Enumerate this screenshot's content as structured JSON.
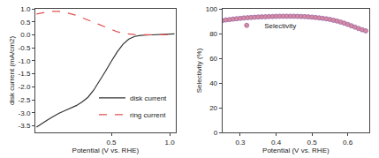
{
  "chart_data": [
    {
      "type": "line",
      "x_label": "Potential (V vs. RHE)",
      "y_label": "disk current (mA/cm2)",
      "xlim": [
        -0.15,
        1.05
      ],
      "ylim": [
        -3.75,
        1.0
      ],
      "xticks": [
        0.5,
        {
          "value": 1,
          "label": "1.0"
        }
      ],
      "yticks": [
        -3.5,
        {
          "value": -3,
          "label": "-3.0"
        },
        -2.5,
        {
          "value": -2,
          "label": "-2.0"
        },
        -1.5,
        {
          "value": -1,
          "label": "-1.0"
        },
        -0.5,
        {
          "value": 0,
          "label": "0.0"
        },
        0.5,
        {
          "value": 1,
          "label": "1.0"
        }
      ],
      "grid": false,
      "legend": "lower right",
      "x": [
        -0.14,
        -0.1,
        -0.05,
        0.0,
        0.05,
        0.1,
        0.15,
        0.2,
        0.25,
        0.3,
        0.35,
        0.4,
        0.45,
        0.5,
        0.55,
        0.6,
        0.65,
        0.7,
        0.75,
        0.8,
        0.85,
        0.9,
        0.95,
        1.0,
        1.04
      ],
      "series": [
        {
          "name": "disk current",
          "color": "#333333",
          "line_style": "solid",
          "values": [
            -3.55,
            -3.42,
            -3.28,
            -3.15,
            -3.02,
            -2.92,
            -2.83,
            -2.72,
            -2.58,
            -2.4,
            -2.12,
            -1.78,
            -1.4,
            -1.02,
            -0.66,
            -0.36,
            -0.16,
            -0.06,
            -0.02,
            -0.01,
            0.0,
            0.0,
            0.01,
            0.02,
            0.04
          ]
        },
        {
          "name": "ring current",
          "color": "#e05050",
          "line_style": "dash",
          "values": [
            0.8,
            0.84,
            0.88,
            0.9,
            0.9,
            0.87,
            0.82,
            0.75,
            0.66,
            0.57,
            0.47,
            0.37,
            0.28,
            0.2,
            0.12,
            0.06,
            0.03,
            0.01,
            0.0,
            0.0,
            0.0,
            0.0,
            0.0,
            0.0,
            0.0
          ]
        }
      ]
    },
    {
      "type": "scatter",
      "x_label": "Potential (V vs. RHE)",
      "y_label": "Selectivity (%)",
      "xlim": [
        0.25,
        0.66
      ],
      "ylim": [
        0,
        100
      ],
      "xticks": [
        0.3,
        0.4,
        0.5,
        0.6
      ],
      "yticks": [
        0,
        20,
        40,
        60,
        80,
        100
      ],
      "grid": false,
      "legend": "upper left",
      "x": [
        0.25,
        0.26,
        0.27,
        0.28,
        0.29,
        0.3,
        0.31,
        0.32,
        0.33,
        0.34,
        0.35,
        0.36,
        0.37,
        0.38,
        0.39,
        0.4,
        0.41,
        0.42,
        0.43,
        0.44,
        0.45,
        0.46,
        0.47,
        0.48,
        0.49,
        0.5,
        0.51,
        0.52,
        0.53,
        0.54,
        0.55,
        0.56,
        0.57,
        0.58,
        0.59,
        0.6,
        0.61,
        0.62,
        0.63,
        0.64,
        0.65
      ],
      "series": [
        {
          "name": "Selectivity",
          "color": "#d98aa0",
          "marker": "circle",
          "values": [
            90.5,
            91,
            91.3,
            91.7,
            92,
            92.3,
            92.6,
            92.8,
            93,
            93.2,
            93.4,
            93.5,
            93.6,
            93.7,
            93.8,
            93.9,
            94,
            94,
            94,
            94,
            94,
            93.9,
            93.8,
            93.7,
            93.5,
            93.3,
            93,
            92.7,
            92.3,
            91.9,
            91.4,
            90.8,
            90.1,
            89.3,
            88.4,
            87.4,
            86.3,
            85.2,
            84.1,
            83.1,
            82.2
          ]
        }
      ]
    }
  ]
}
